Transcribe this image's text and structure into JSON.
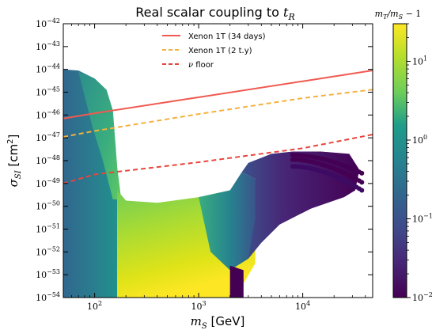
{
  "chart_data": {
    "type": "scatter",
    "title": "Real scalar coupling to t_R",
    "title_parts": {
      "main": "Real scalar coupling to ",
      "var": "t",
      "sub": "R"
    },
    "xlabel": "m_S [GeV]",
    "xlabel_parts": {
      "var": "m",
      "sub": "S",
      "unit": " [GeV]"
    },
    "ylabel": "σ_SI [cm²]",
    "ylabel_parts": {
      "var": "σ",
      "sub": "SI",
      "unit": " [cm",
      "sup": "2",
      "close": "]"
    },
    "x_scale": "log",
    "y_scale": "log",
    "xlim": [
      50,
      47000
    ],
    "ylim": [
      1e-54,
      1e-42
    ],
    "x_ticks": [
      {
        "value": 100,
        "base": "10",
        "exp": "2"
      },
      {
        "value": 1000,
        "base": "10",
        "exp": "3"
      },
      {
        "value": 10000,
        "base": "10",
        "exp": "4"
      }
    ],
    "y_ticks": [
      {
        "value": 1e-54,
        "base": "10",
        "exp": "−54"
      },
      {
        "value": 1e-53,
        "base": "10",
        "exp": "−53"
      },
      {
        "value": 1e-52,
        "base": "10",
        "exp": "−52"
      },
      {
        "value": 1e-51,
        "base": "10",
        "exp": "−51"
      },
      {
        "value": 1e-50,
        "base": "10",
        "exp": "−50"
      },
      {
        "value": 1e-49,
        "base": "10",
        "exp": "−49"
      },
      {
        "value": 1e-48,
        "base": "10",
        "exp": "−48"
      },
      {
        "value": 1e-47,
        "base": "10",
        "exp": "−47"
      },
      {
        "value": 1e-46,
        "base": "10",
        "exp": "−46"
      },
      {
        "value": 1e-45,
        "base": "10",
        "exp": "−45"
      },
      {
        "value": 1e-44,
        "base": "10",
        "exp": "−44"
      },
      {
        "value": 1e-43,
        "base": "10",
        "exp": "−43"
      },
      {
        "value": 1e-42,
        "base": "10",
        "exp": "−42"
      }
    ],
    "legend": {
      "placement": "top-center"
    },
    "series": [
      {
        "name": "Xenon 1T (34 days)",
        "style": "solid",
        "color": "#f05a50",
        "points": [
          [
            50,
            7e-47
          ],
          [
            100,
            1.2e-46
          ],
          [
            1000,
            6e-46
          ],
          [
            10000,
            3e-45
          ],
          [
            47000,
            9e-45
          ]
        ]
      },
      {
        "name": "Xenon 1T (2 t.y)",
        "style": "dashed",
        "color": "#f5b13d",
        "points": [
          [
            50,
            1.1e-47
          ],
          [
            100,
            2e-47
          ],
          [
            1000,
            1.1e-46
          ],
          [
            10000,
            5.5e-46
          ],
          [
            47000,
            1.3e-45
          ]
        ]
      },
      {
        "name": "ν floor",
        "name_parts": {
          "var": "ν",
          "text": " floor"
        },
        "style": "dashed",
        "color": "#e8453c",
        "points": [
          [
            50,
            1e-49
          ],
          [
            100,
            2.5e-49
          ],
          [
            1000,
            8.5e-49
          ],
          [
            10000,
            3.5e-48
          ],
          [
            47000,
            1.4e-47
          ]
        ]
      }
    ],
    "scatter_region": {
      "description": "dense scan points colored by m_T/m_S - 1",
      "color_scale": "viridis",
      "color_log": true
    },
    "colorbar": {
      "title": "m_T/m_S − 1",
      "title_parts": {
        "a": "m",
        "a_sub": "T",
        "slash": "/",
        "b": "m",
        "b_sub": "S",
        "rest": " − 1"
      },
      "range": [
        0.01,
        30
      ],
      "ticks": [
        {
          "value": 0.01,
          "base": "10",
          "exp": "−2"
        },
        {
          "value": 0.1,
          "base": "10",
          "exp": "−1"
        },
        {
          "value": 1,
          "base": "10",
          "exp": "0"
        },
        {
          "value": 10,
          "base": "10",
          "exp": "1"
        }
      ]
    }
  }
}
